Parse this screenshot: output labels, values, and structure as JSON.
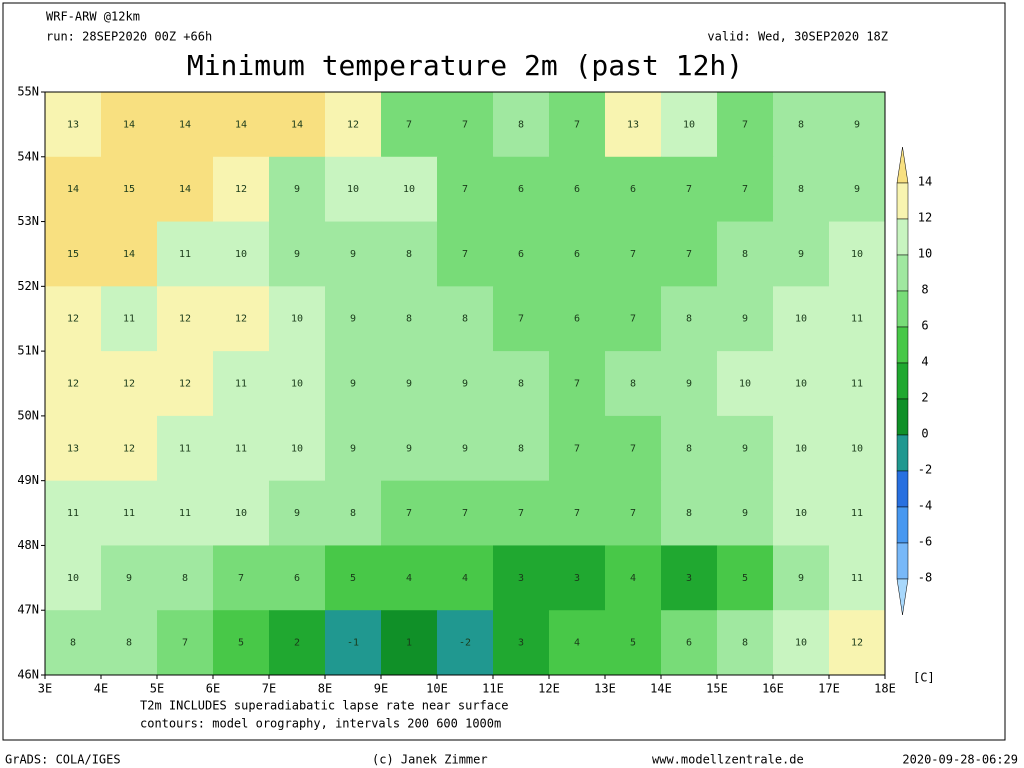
{
  "header": {
    "model": "WRF-ARW @12km",
    "run": "run: 28SEP2020 00Z +66h",
    "valid": "valid: Wed, 30SEP2020 18Z",
    "title": "Minimum temperature 2m (past 12h)"
  },
  "map": {
    "lon_ticks": [
      {
        "value": 3,
        "label": "3E"
      },
      {
        "value": 4,
        "label": "4E"
      },
      {
        "value": 5,
        "label": "5E"
      },
      {
        "value": 6,
        "label": "6E"
      },
      {
        "value": 7,
        "label": "7E"
      },
      {
        "value": 8,
        "label": "8E"
      },
      {
        "value": 9,
        "label": "9E"
      },
      {
        "value": 10,
        "label": "10E"
      },
      {
        "value": 11,
        "label": "11E"
      },
      {
        "value": 12,
        "label": "12E"
      },
      {
        "value": 13,
        "label": "13E"
      },
      {
        "value": 14,
        "label": "14E"
      },
      {
        "value": 15,
        "label": "15E"
      },
      {
        "value": 16,
        "label": "16E"
      },
      {
        "value": 17,
        "label": "17E"
      },
      {
        "value": 18,
        "label": "18E"
      }
    ],
    "lat_ticks": [
      {
        "value": 55,
        "label": "55N"
      },
      {
        "value": 54,
        "label": "54N"
      },
      {
        "value": 53,
        "label": "53N"
      },
      {
        "value": 52,
        "label": "52N"
      },
      {
        "value": 51,
        "label": "51N"
      },
      {
        "value": 50,
        "label": "50N"
      },
      {
        "value": 49,
        "label": "49N"
      },
      {
        "value": 48,
        "label": "48N"
      },
      {
        "value": 47,
        "label": "47N"
      },
      {
        "value": 46,
        "label": "46N"
      }
    ],
    "grid": [
      [
        13,
        14,
        14,
        14,
        14,
        12,
        7,
        7,
        8,
        7,
        13,
        10,
        7,
        8,
        9
      ],
      [
        14,
        15,
        14,
        12,
        9,
        10,
        10,
        7,
        6,
        6,
        6,
        7,
        7,
        8,
        9
      ],
      [
        15,
        14,
        11,
        10,
        9,
        9,
        8,
        7,
        6,
        6,
        7,
        7,
        8,
        9,
        10
      ],
      [
        12,
        11,
        12,
        12,
        10,
        9,
        8,
        8,
        7,
        6,
        7,
        8,
        9,
        10,
        11
      ],
      [
        12,
        12,
        12,
        11,
        10,
        9,
        9,
        9,
        8,
        7,
        8,
        9,
        10,
        10,
        11
      ],
      [
        13,
        12,
        11,
        11,
        10,
        9,
        9,
        9,
        8,
        7,
        7,
        8,
        9,
        10,
        10
      ],
      [
        11,
        11,
        11,
        10,
        9,
        8,
        7,
        7,
        7,
        7,
        7,
        8,
        9,
        10,
        11
      ],
      [
        10,
        9,
        8,
        7,
        6,
        5,
        4,
        4,
        3,
        3,
        4,
        3,
        5,
        9,
        11
      ],
      [
        8,
        8,
        7,
        5,
        2,
        -1,
        1,
        -2,
        3,
        4,
        5,
        6,
        8,
        10,
        12
      ]
    ]
  },
  "colorbar": {
    "levels": [
      14,
      12,
      10,
      8,
      6,
      4,
      2,
      0,
      -2,
      -4,
      -6,
      -8
    ],
    "colors": [
      "#f8e080",
      "#f8f4b0",
      "#c8f4c0",
      "#a0e8a0",
      "#78dc78",
      "#48c848",
      "#20a830",
      "#109028",
      "#209890",
      "#2870e0",
      "#4898f0",
      "#78b8f8",
      "#a8d8fc"
    ],
    "unit": "[C]"
  },
  "notes": [
    "T2m INCLUDES superadiabatic lapse rate near surface",
    "contours: model orography, intervals 200 600 1000m"
  ],
  "footer": {
    "software": "GrADS: COLA/IGES",
    "credit": "(c) Janek Zimmer",
    "website": "www.modellzentrale.de",
    "timestamp": "2020-09-28-06:29"
  }
}
